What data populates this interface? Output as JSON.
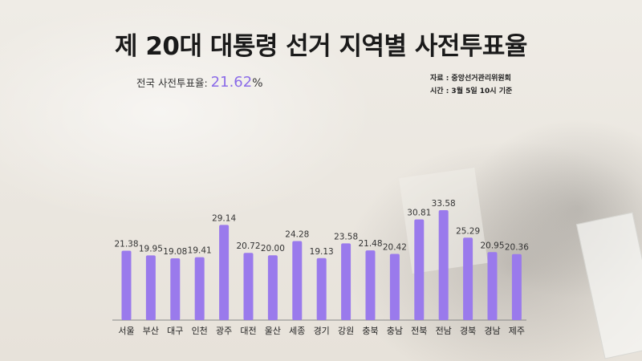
{
  "title": "제 20대 대통령 선거 지역별 사전투표율",
  "national": {
    "label": "전국 사전투표율:",
    "rate": "21.62",
    "unit": "%"
  },
  "source": "자료 : 중앙선거관리위원회",
  "time": "시간 : 3월 5일 10시 기준",
  "colors": {
    "bar": "#9a7aec",
    "accent": "#8b6ce8",
    "axis": "#888888"
  },
  "chart_data": {
    "type": "bar",
    "categories": [
      "서울",
      "부산",
      "대구",
      "인천",
      "광주",
      "대전",
      "울산",
      "세종",
      "경기",
      "강원",
      "충북",
      "충남",
      "전북",
      "전남",
      "경북",
      "경남",
      "제주"
    ],
    "values": [
      21.38,
      19.95,
      19.08,
      19.41,
      29.14,
      20.72,
      20.0,
      24.28,
      19.13,
      23.58,
      21.48,
      20.42,
      30.81,
      33.58,
      25.29,
      20.95,
      20.36
    ],
    "labels": [
      "21.38",
      "19.95",
      "19.08",
      "19.41",
      "29.14",
      "20.72",
      "20.00",
      "24.28",
      "19.13",
      "23.58",
      "21.48",
      "20.42",
      "30.81",
      "33.58",
      "25.29",
      "20.95",
      "20.36"
    ],
    "title": "제 20대 대통령 선거 지역별 사전투표율",
    "xlabel": "",
    "ylabel": "",
    "ylim": [
      0,
      35
    ],
    "grid": false,
    "legend": "none"
  }
}
